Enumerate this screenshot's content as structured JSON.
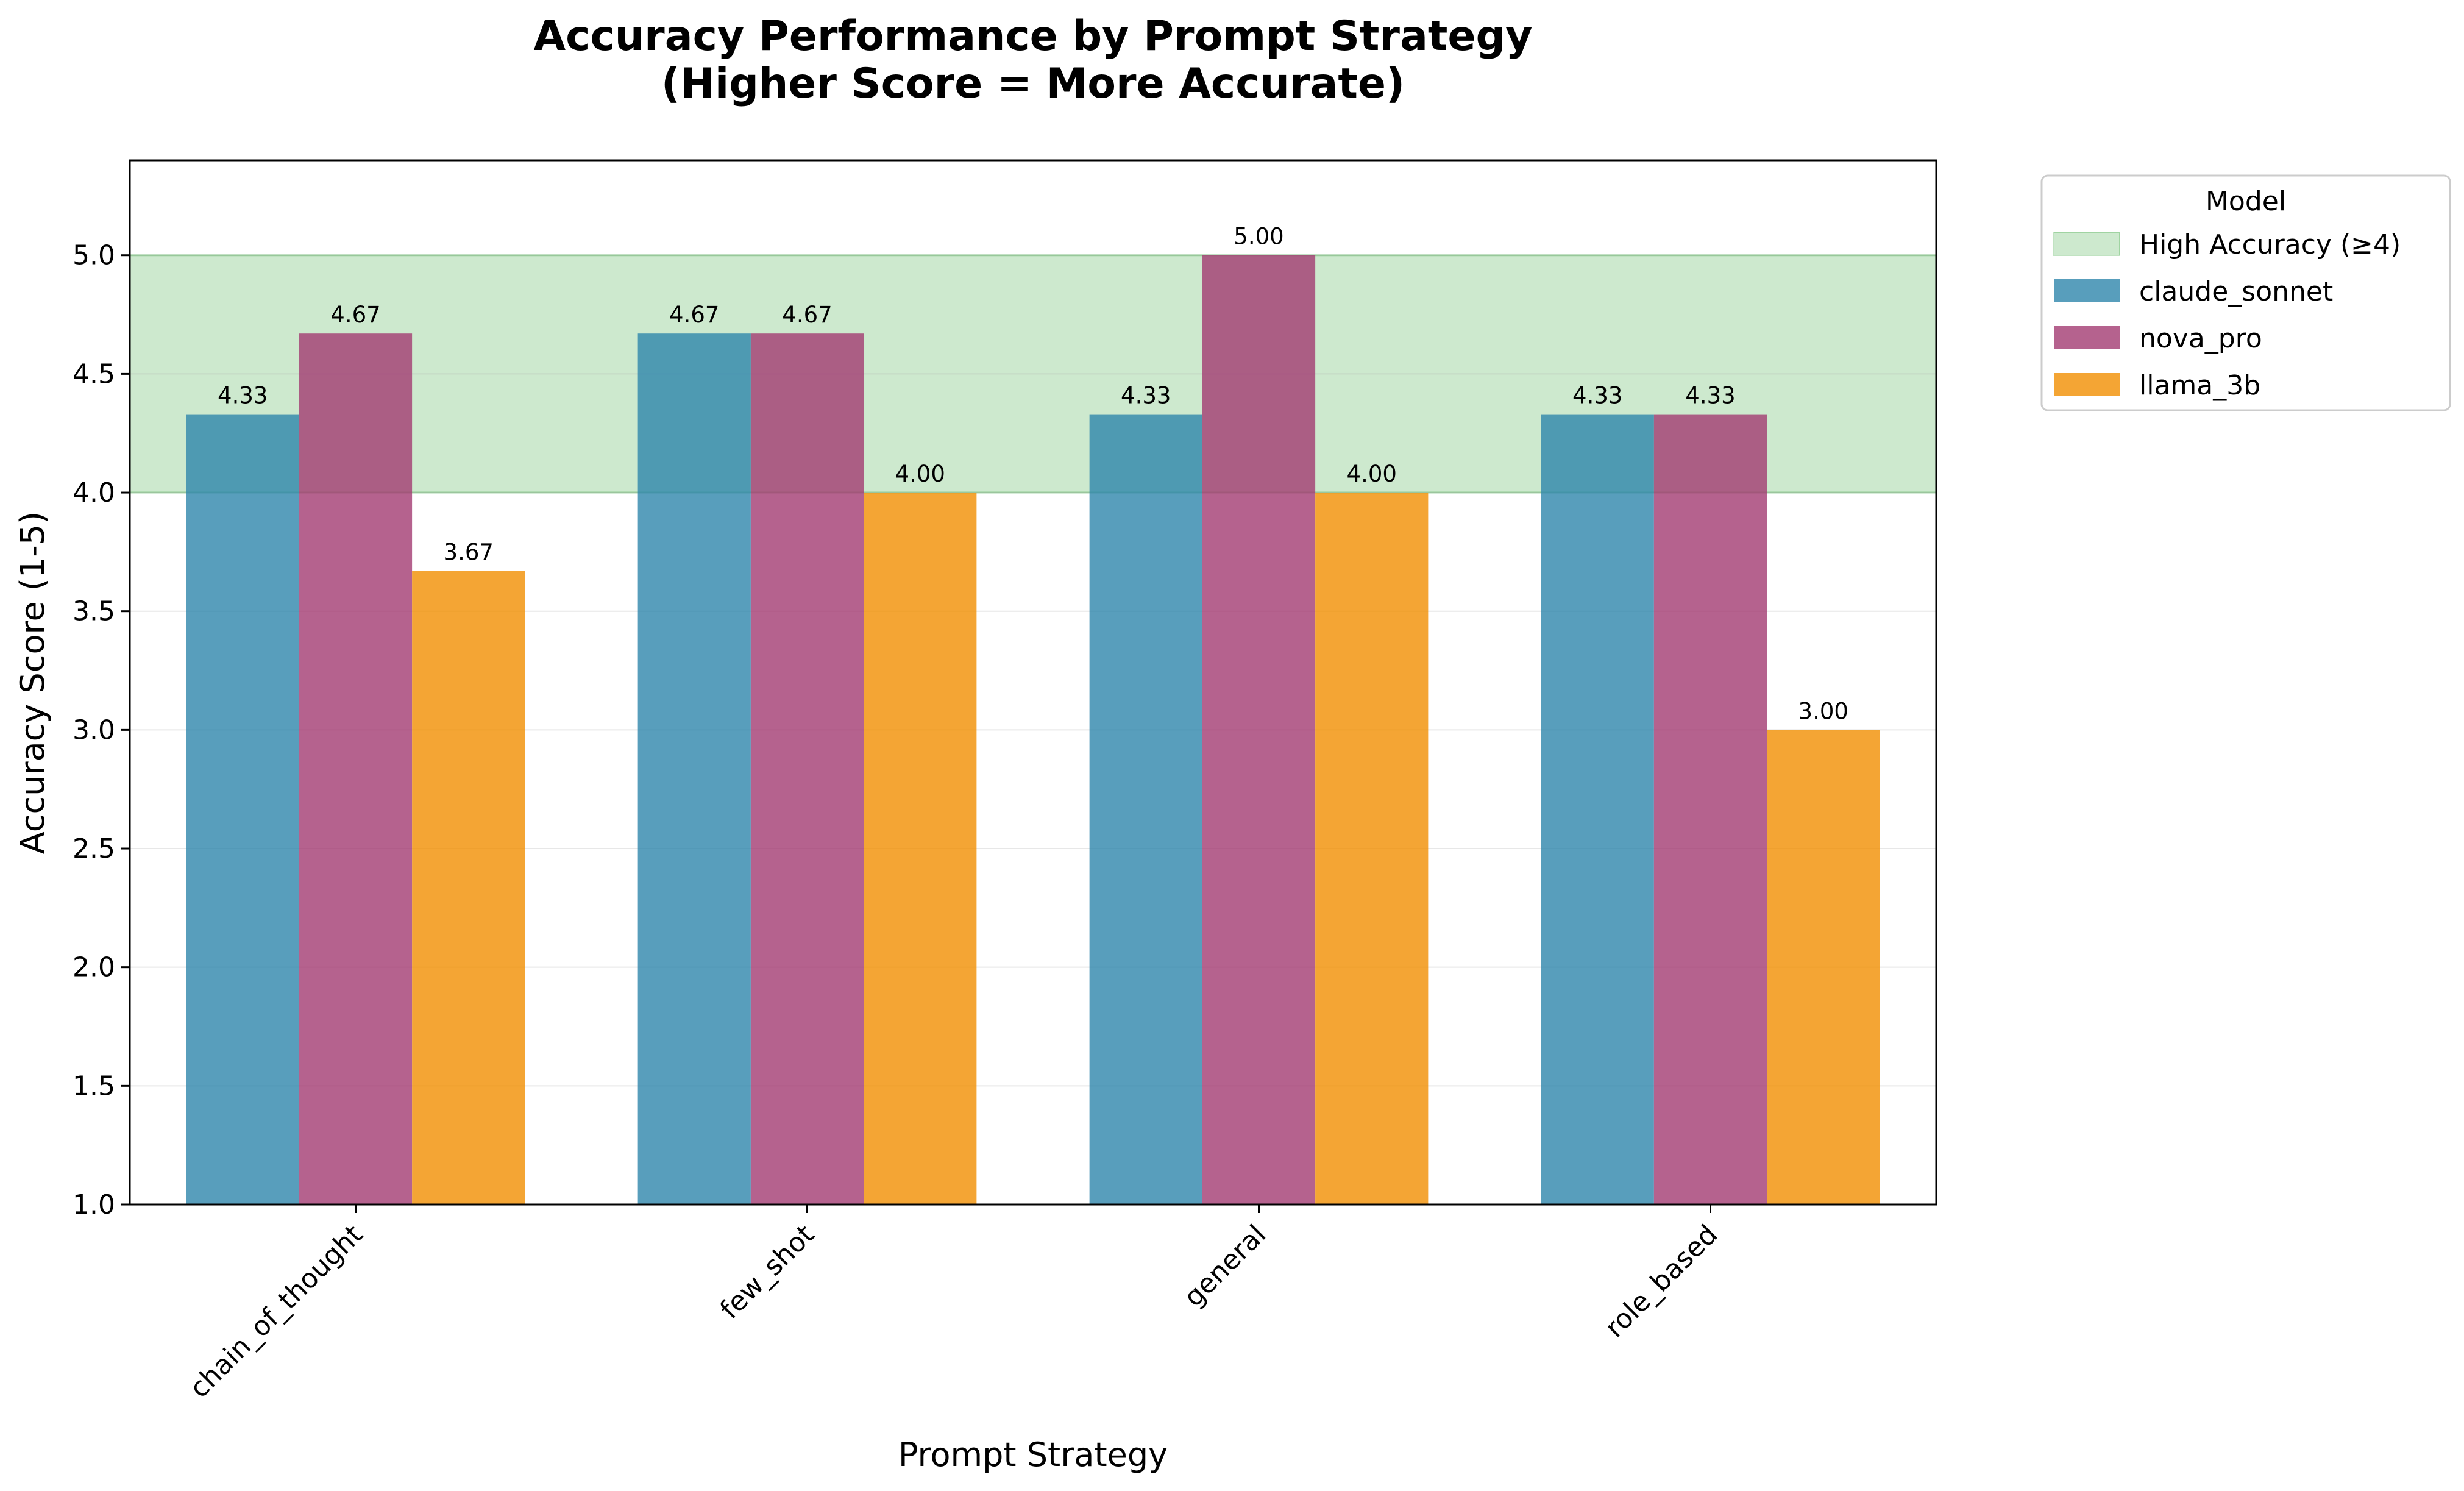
{
  "chart_data": {
    "type": "bar",
    "title_line1": "Accuracy Performance by Prompt Strategy",
    "title_line2": "(Higher Score = More Accurate)",
    "xlabel": "Prompt Strategy",
    "ylabel": "Accuracy Score (1-5)",
    "ylim": [
      1.0,
      5.4
    ],
    "yticks": [
      "1.0",
      "1.5",
      "2.0",
      "2.5",
      "3.0",
      "3.5",
      "4.0",
      "4.5",
      "5.0"
    ],
    "grid": "horizontal",
    "categories": [
      "chain_of_thought",
      "few_shot",
      "general",
      "role_based"
    ],
    "series": [
      {
        "name": "claude_sonnet",
        "color": "#2E86AB",
        "values": [
          4.33,
          4.67,
          4.33,
          4.33
        ],
        "labels": [
          "4.33",
          "4.67",
          "4.33",
          "4.33"
        ]
      },
      {
        "name": "nova_pro",
        "color": "#A23B72",
        "values": [
          4.67,
          4.67,
          5.0,
          4.33
        ],
        "labels": [
          "4.67",
          "4.67",
          "5.00",
          "4.33"
        ]
      },
      {
        "name": "llama_3b",
        "color": "#F18F01",
        "values": [
          3.67,
          4.0,
          4.0,
          3.0
        ],
        "labels": [
          "3.67",
          "4.00",
          "4.00",
          "3.00"
        ]
      }
    ],
    "band": {
      "label": "High Accuracy (≥4)",
      "from": 4.0,
      "to": 5.0,
      "color": "#4CAF50"
    },
    "legend": {
      "title": "Model",
      "placement": "outside-right-top"
    }
  }
}
